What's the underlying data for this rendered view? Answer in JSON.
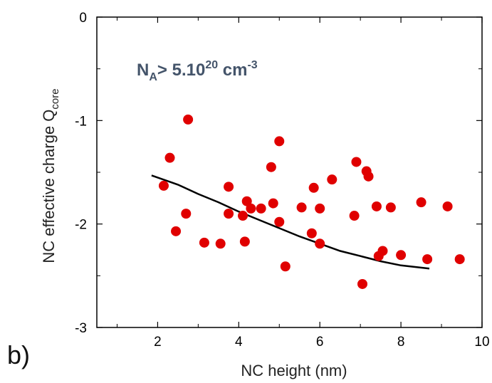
{
  "panel_label": "b)",
  "colors": {
    "points": "#e00000",
    "fit": "#000000",
    "annotation": "#44546a",
    "frame": "#000000"
  },
  "chart_data": {
    "type": "scatter",
    "xlabel": "NC height (nm)",
    "ylabel_main": "NC effective charge Q",
    "ylabel_sub": "core",
    "annotation": {
      "base": "N",
      "base_sub": "A",
      "text": "> 5.10",
      "exp": "20",
      "unit": " cm",
      "unit_exp": "-3"
    },
    "xlim": [
      0.5,
      10
    ],
    "ylim": [
      -3,
      0
    ],
    "xticks": [
      2,
      4,
      6,
      8,
      10
    ],
    "xticks_minor": [
      1,
      3,
      5,
      7,
      9
    ],
    "yticks": [
      0,
      -1,
      -2,
      -3
    ],
    "yticks_minor": [
      -0.5,
      -1.5,
      -2.5
    ],
    "grid": false,
    "points": {
      "x": [
        2.15,
        2.3,
        2.45,
        2.7,
        2.75,
        3.15,
        3.55,
        3.75,
        3.75,
        4.1,
        4.15,
        4.2,
        4.3,
        4.55,
        4.8,
        4.85,
        5.0,
        5.0,
        5.15,
        5.55,
        5.8,
        5.85,
        6.0,
        6.0,
        6.3,
        6.85,
        6.9,
        7.05,
        7.15,
        7.2,
        7.4,
        7.45,
        7.55,
        7.75,
        8.0,
        8.5,
        8.65,
        9.15,
        9.45
      ],
      "y": [
        -1.63,
        -1.36,
        -2.07,
        -1.9,
        -0.99,
        -2.18,
        -2.19,
        -1.64,
        -1.9,
        -1.92,
        -2.17,
        -1.78,
        -1.85,
        -1.85,
        -1.45,
        -1.8,
        -1.2,
        -1.98,
        -2.41,
        -1.84,
        -2.09,
        -1.65,
        -1.85,
        -2.19,
        -1.57,
        -1.92,
        -1.4,
        -2.58,
        -1.49,
        -1.54,
        -1.83,
        -2.31,
        -2.26,
        -1.84,
        -2.3,
        -1.79,
        -2.34,
        -1.83,
        -2.34
      ]
    },
    "fit": {
      "x": [
        1.85,
        2.5,
        3.0,
        3.5,
        4.0,
        4.5,
        5.0,
        5.5,
        6.0,
        6.5,
        7.0,
        7.5,
        8.0,
        8.7
      ],
      "y": [
        -1.53,
        -1.62,
        -1.71,
        -1.79,
        -1.88,
        -1.96,
        -2.04,
        -2.12,
        -2.19,
        -2.26,
        -2.31,
        -2.36,
        -2.4,
        -2.43
      ]
    }
  }
}
